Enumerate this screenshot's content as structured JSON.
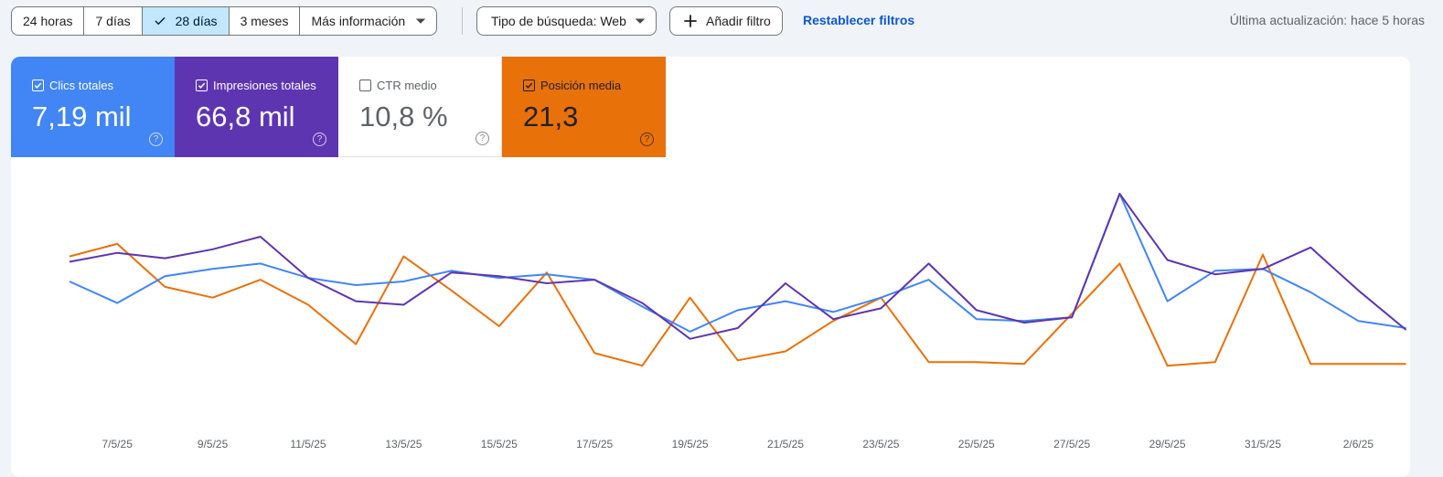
{
  "toolbar": {
    "ranges": [
      {
        "label": "24 horas",
        "selected": false
      },
      {
        "label": "7 días",
        "selected": false
      },
      {
        "label": "28 días",
        "selected": true
      },
      {
        "label": "3 meses",
        "selected": false
      }
    ],
    "more_label": "Más información",
    "search_type_label": "Tipo de búsqueda: Web",
    "add_filter_label": "Añadir filtro",
    "reset_label": "Restablecer filtros",
    "last_update": "Última actualización: hace 5 horas"
  },
  "metrics": [
    {
      "key": "clicks",
      "label": "Clics totales",
      "value": "7,19 mil",
      "checked": true,
      "color": "#4285f4"
    },
    {
      "key": "impressions",
      "label": "Impresiones totales",
      "value": "66,8 mil",
      "checked": true,
      "color": "#5e35b1"
    },
    {
      "key": "ctr",
      "label": "CTR medio",
      "value": "10,8 %",
      "checked": false,
      "color": "#ffffff"
    },
    {
      "key": "position",
      "label": "Posición media",
      "value": "21,3",
      "checked": true,
      "color": "#e8710a"
    }
  ],
  "help_glyph": "?",
  "chart_data": {
    "type": "line",
    "x": [
      "6/5/25",
      "7/5/25",
      "8/5/25",
      "9/5/25",
      "10/5/25",
      "11/5/25",
      "12/5/25",
      "13/5/25",
      "14/5/25",
      "15/5/25",
      "16/5/25",
      "17/5/25",
      "18/5/25",
      "19/5/25",
      "20/5/25",
      "21/5/25",
      "22/5/25",
      "23/5/25",
      "24/5/25",
      "25/5/25",
      "26/5/25",
      "27/5/25",
      "28/5/25",
      "29/5/25",
      "30/5/25",
      "31/5/25",
      "1/6/25",
      "2/6/25",
      "3/6/25"
    ],
    "tick_labels": [
      "7/5/25",
      "9/5/25",
      "11/5/25",
      "13/5/25",
      "15/5/25",
      "17/5/25",
      "19/5/25",
      "21/5/25",
      "23/5/25",
      "25/5/25",
      "27/5/25",
      "29/5/25",
      "31/5/25",
      "2/6/25"
    ],
    "series": [
      {
        "key": "clicks",
        "color": "#4285f4",
        "values": [
          0.51,
          0.39,
          0.54,
          0.58,
          0.61,
          0.53,
          0.49,
          0.51,
          0.57,
          0.53,
          0.55,
          0.52,
          0.37,
          0.23,
          0.35,
          0.4,
          0.34,
          0.42,
          0.52,
          0.3,
          0.29,
          0.31,
          1.0,
          0.4,
          0.57,
          0.58,
          0.45,
          0.29,
          0.25
        ]
      },
      {
        "key": "impressions",
        "color": "#5e35b1",
        "values": [
          0.62,
          0.67,
          0.64,
          0.69,
          0.76,
          0.53,
          0.4,
          0.38,
          0.56,
          0.54,
          0.5,
          0.52,
          0.39,
          0.19,
          0.25,
          0.5,
          0.3,
          0.36,
          0.61,
          0.35,
          0.28,
          0.31,
          1.0,
          0.63,
          0.55,
          0.58,
          0.7,
          0.46,
          0.24
        ]
      },
      {
        "key": "position",
        "reversed": true,
        "color": "#e8710a",
        "values": [
          0.65,
          0.72,
          0.48,
          0.42,
          0.52,
          0.38,
          0.16,
          0.65,
          0.46,
          0.26,
          0.56,
          0.11,
          0.04,
          0.42,
          0.07,
          0.12,
          0.29,
          0.42,
          0.06,
          0.06,
          0.05,
          0.33,
          0.61,
          0.04,
          0.06,
          0.66,
          0.05,
          0.05,
          0.05
        ]
      }
    ],
    "xlabel": "",
    "ylabel": "",
    "legend": "none",
    "grid": false
  }
}
